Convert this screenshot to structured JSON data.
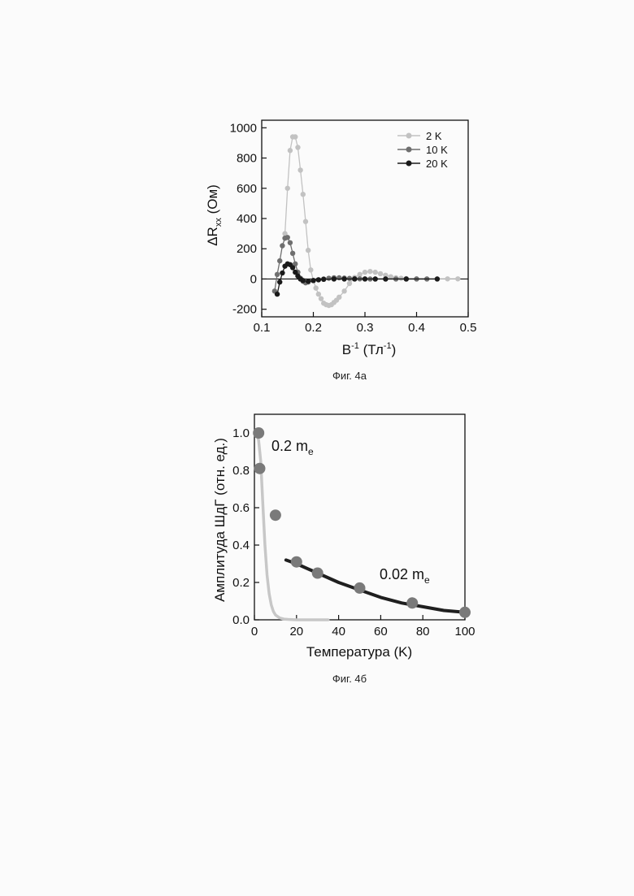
{
  "figure_a": {
    "caption": "Фиг. 4а",
    "ylabel_prefix": "ΔR",
    "ylabel_sub": "xx",
    "ylabel_unit": " (Ом)",
    "xlabel_main": "B",
    "xlabel_sup": "-1",
    "xlabel_unit_open": " (Тл",
    "xlabel_unit_sup": "-1",
    "xlabel_unit_close": ")"
  },
  "figure_b": {
    "caption": "Фиг. 4б",
    "ylabel": "Амплитуда ШдГ (отн. ед.)",
    "xlabel": "Температура (K)",
    "annot1_main": "0.2 m",
    "annot1_sub": "e",
    "annot2_main": "0.02 m",
    "annot2_sub": "e"
  },
  "colors": {
    "k2": "#c2c2c2",
    "k10": "#6f6f6f",
    "k20": "#1a1a1a",
    "fit_light": "#c7c7c7",
    "fit_dark": "#1f1f1f",
    "points_b": "#7a7a7a"
  },
  "chart_data": [
    {
      "type": "line",
      "xlim": [
        0.1,
        0.5
      ],
      "ylim": [
        -250,
        1050
      ],
      "xticks": [
        "0.1",
        "0.2",
        "0.3",
        "0.4",
        "0.5"
      ],
      "yticks": [
        "-200",
        "0",
        "200",
        "400",
        "600",
        "800",
        "1000"
      ],
      "legend_position": "top-right",
      "series": [
        {
          "name": "2 K",
          "x": [
            0.145,
            0.15,
            0.155,
            0.16,
            0.165,
            0.17,
            0.175,
            0.18,
            0.185,
            0.19,
            0.195,
            0.2,
            0.205,
            0.21,
            0.215,
            0.22,
            0.225,
            0.23,
            0.235,
            0.24,
            0.245,
            0.25,
            0.26,
            0.27,
            0.28,
            0.29,
            0.3,
            0.31,
            0.32,
            0.33,
            0.34,
            0.35,
            0.36,
            0.37,
            0.38,
            0.4,
            0.42,
            0.44,
            0.46,
            0.48
          ],
          "y": [
            300,
            600,
            850,
            940,
            940,
            870,
            720,
            560,
            380,
            190,
            60,
            -10,
            -60,
            -100,
            -130,
            -160,
            -170,
            -175,
            -170,
            -155,
            -140,
            -120,
            -80,
            -30,
            10,
            30,
            45,
            50,
            45,
            35,
            25,
            15,
            8,
            5,
            3,
            2,
            1,
            1,
            1,
            1
          ]
        },
        {
          "name": "10 K",
          "x": [
            0.125,
            0.13,
            0.135,
            0.14,
            0.145,
            0.15,
            0.155,
            0.16,
            0.165,
            0.17,
            0.175,
            0.18,
            0.185,
            0.19,
            0.2,
            0.21,
            0.22,
            0.23,
            0.24,
            0.25,
            0.26,
            0.27,
            0.28,
            0.29,
            0.3,
            0.31,
            0.32,
            0.34,
            0.36,
            0.38,
            0.4,
            0.42
          ],
          "y": [
            -80,
            30,
            120,
            220,
            270,
            275,
            240,
            170,
            100,
            45,
            5,
            -15,
            -25,
            -20,
            -10,
            -5,
            0,
            5,
            8,
            8,
            6,
            4,
            2,
            1,
            1,
            0,
            0,
            0,
            0,
            0,
            0,
            0
          ]
        },
        {
          "name": "20 K",
          "x": [
            0.13,
            0.135,
            0.14,
            0.145,
            0.15,
            0.155,
            0.16,
            0.165,
            0.17,
            0.175,
            0.18,
            0.19,
            0.2,
            0.21,
            0.22,
            0.24,
            0.26,
            0.28,
            0.3,
            0.32,
            0.34,
            0.38,
            0.44
          ],
          "y": [
            -100,
            -20,
            40,
            85,
            100,
            95,
            75,
            45,
            20,
            0,
            -10,
            -15,
            -10,
            -5,
            -2,
            0,
            0,
            0,
            0,
            0,
            0,
            0,
            0
          ]
        }
      ]
    },
    {
      "type": "scatter",
      "xlim": [
        0,
        100
      ],
      "ylim": [
        0,
        1.1
      ],
      "xticks": [
        "0",
        "20",
        "40",
        "60",
        "80",
        "100"
      ],
      "yticks": [
        "0.0",
        "0.2",
        "0.4",
        "0.6",
        "0.8",
        "1.0"
      ],
      "points": {
        "x": [
          2,
          2.5,
          10,
          20,
          30,
          50,
          75,
          100
        ],
        "y": [
          1.0,
          0.81,
          0.56,
          0.31,
          0.25,
          0.17,
          0.09,
          0.04
        ]
      },
      "fits": [
        {
          "label": "0.2 m_e",
          "x": [
            1,
            2,
            3,
            4,
            5,
            6,
            7,
            8,
            9,
            10,
            12,
            14,
            16,
            20,
            25,
            30,
            35
          ],
          "y": [
            1.0,
            0.96,
            0.85,
            0.62,
            0.4,
            0.24,
            0.14,
            0.08,
            0.045,
            0.026,
            0.01,
            0.004,
            0.002,
            0.0,
            0.0,
            0.0,
            0.0
          ]
        },
        {
          "label": "0.02 m_e",
          "x": [
            15,
            20,
            30,
            40,
            50,
            60,
            70,
            80,
            90,
            100
          ],
          "y": [
            0.32,
            0.3,
            0.25,
            0.2,
            0.16,
            0.12,
            0.09,
            0.07,
            0.05,
            0.04
          ]
        }
      ]
    }
  ]
}
